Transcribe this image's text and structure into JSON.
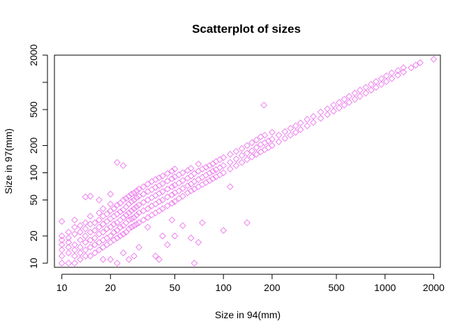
{
  "chart_data": {
    "type": "scatter",
    "title": "Scatterplot of sizes",
    "xlabel": "Size in 94(mm)",
    "ylabel": "Size in 97(mm)",
    "x_scale": "log",
    "y_scale": "log",
    "xlim": [
      9,
      2200
    ],
    "ylim": [
      9,
      2000
    ],
    "x_ticks": [
      10,
      20,
      50,
      100,
      200,
      500,
      1000,
      2000
    ],
    "y_ticks": [
      10,
      20,
      50,
      100,
      200,
      500,
      2000
    ],
    "y_tick_marks": [
      10,
      20,
      50,
      100,
      200,
      500,
      1000,
      2000
    ],
    "grid": false,
    "legend": "none",
    "marker": "diamond",
    "color": "#EE82EE",
    "points": [
      [
        10,
        10
      ],
      [
        10,
        12
      ],
      [
        10,
        14
      ],
      [
        10,
        16
      ],
      [
        10,
        18
      ],
      [
        10,
        20
      ],
      [
        10,
        29
      ],
      [
        11,
        10
      ],
      [
        11,
        13
      ],
      [
        11,
        15
      ],
      [
        11,
        17
      ],
      [
        11,
        19
      ],
      [
        11,
        22
      ],
      [
        12,
        10
      ],
      [
        12,
        12
      ],
      [
        12,
        14
      ],
      [
        12,
        16
      ],
      [
        12,
        21
      ],
      [
        12,
        25
      ],
      [
        12,
        30
      ],
      [
        13,
        11
      ],
      [
        13,
        13
      ],
      [
        13,
        15
      ],
      [
        13,
        18
      ],
      [
        13,
        22
      ],
      [
        13,
        26
      ],
      [
        14,
        12
      ],
      [
        14,
        14
      ],
      [
        14,
        17
      ],
      [
        14,
        20
      ],
      [
        14,
        24
      ],
      [
        14,
        28
      ],
      [
        14,
        54
      ],
      [
        15,
        12
      ],
      [
        15,
        15
      ],
      [
        15,
        18
      ],
      [
        15,
        22
      ],
      [
        15,
        27
      ],
      [
        15,
        33
      ],
      [
        15,
        55
      ],
      [
        16,
        13
      ],
      [
        16,
        16
      ],
      [
        16,
        19
      ],
      [
        16,
        23
      ],
      [
        16,
        28
      ],
      [
        17,
        14
      ],
      [
        17,
        17
      ],
      [
        17,
        21
      ],
      [
        17,
        25
      ],
      [
        17,
        30
      ],
      [
        17,
        36
      ],
      [
        17,
        50
      ],
      [
        18,
        11
      ],
      [
        18,
        15
      ],
      [
        18,
        18
      ],
      [
        18,
        22
      ],
      [
        18,
        27
      ],
      [
        18,
        33
      ],
      [
        18,
        40
      ],
      [
        19,
        16
      ],
      [
        19,
        19
      ],
      [
        19,
        24
      ],
      [
        19,
        29
      ],
      [
        19,
        35
      ],
      [
        20,
        11
      ],
      [
        20,
        17
      ],
      [
        20,
        20
      ],
      [
        20,
        25
      ],
      [
        20,
        31
      ],
      [
        20,
        38
      ],
      [
        20,
        45
      ],
      [
        20,
        58
      ],
      [
        21,
        18
      ],
      [
        21,
        22
      ],
      [
        21,
        27
      ],
      [
        21,
        33
      ],
      [
        21,
        40
      ],
      [
        22,
        10
      ],
      [
        22,
        19
      ],
      [
        22,
        23
      ],
      [
        22,
        28
      ],
      [
        22,
        35
      ],
      [
        22,
        44
      ],
      [
        22,
        130
      ],
      [
        23,
        20
      ],
      [
        23,
        25
      ],
      [
        23,
        30
      ],
      [
        23,
        37
      ],
      [
        23,
        46
      ],
      [
        24,
        13
      ],
      [
        24,
        21
      ],
      [
        24,
        26
      ],
      [
        24,
        32
      ],
      [
        24,
        39
      ],
      [
        24,
        50
      ],
      [
        24,
        120
      ],
      [
        25,
        22
      ],
      [
        25,
        28
      ],
      [
        25,
        34
      ],
      [
        25,
        42
      ],
      [
        25,
        52
      ],
      [
        26,
        11
      ],
      [
        26,
        24
      ],
      [
        26,
        30
      ],
      [
        26,
        36
      ],
      [
        26,
        45
      ],
      [
        26,
        55
      ],
      [
        27,
        25
      ],
      [
        27,
        31
      ],
      [
        27,
        38
      ],
      [
        27,
        48
      ],
      [
        27,
        58
      ],
      [
        28,
        12
      ],
      [
        28,
        26
      ],
      [
        28,
        32
      ],
      [
        28,
        40
      ],
      [
        28,
        50
      ],
      [
        28,
        60
      ],
      [
        29,
        27
      ],
      [
        29,
        34
      ],
      [
        29,
        42
      ],
      [
        29,
        53
      ],
      [
        29,
        63
      ],
      [
        30,
        15
      ],
      [
        30,
        28
      ],
      [
        30,
        36
      ],
      [
        30,
        44
      ],
      [
        30,
        55
      ],
      [
        30,
        66
      ],
      [
        32,
        30
      ],
      [
        32,
        38
      ],
      [
        32,
        47
      ],
      [
        32,
        58
      ],
      [
        32,
        70
      ],
      [
        34,
        25
      ],
      [
        34,
        32
      ],
      [
        34,
        40
      ],
      [
        34,
        50
      ],
      [
        34,
        62
      ],
      [
        34,
        75
      ],
      [
        36,
        34
      ],
      [
        36,
        43
      ],
      [
        36,
        53
      ],
      [
        36,
        65
      ],
      [
        36,
        80
      ],
      [
        38,
        12
      ],
      [
        38,
        36
      ],
      [
        38,
        45
      ],
      [
        38,
        56
      ],
      [
        38,
        69
      ],
      [
        38,
        84
      ],
      [
        40,
        11
      ],
      [
        40,
        38
      ],
      [
        40,
        48
      ],
      [
        40,
        59
      ],
      [
        40,
        72
      ],
      [
        40,
        88
      ],
      [
        42,
        20
      ],
      [
        42,
        40
      ],
      [
        42,
        50
      ],
      [
        42,
        62
      ],
      [
        42,
        76
      ],
      [
        42,
        92
      ],
      [
        45,
        16
      ],
      [
        45,
        43
      ],
      [
        45,
        54
      ],
      [
        45,
        66
      ],
      [
        45,
        81
      ],
      [
        45,
        98
      ],
      [
        48,
        30
      ],
      [
        48,
        46
      ],
      [
        48,
        57
      ],
      [
        48,
        70
      ],
      [
        48,
        86
      ],
      [
        48,
        104
      ],
      [
        50,
        20
      ],
      [
        50,
        48
      ],
      [
        50,
        60
      ],
      [
        50,
        73
      ],
      [
        50,
        90
      ],
      [
        50,
        110
      ],
      [
        53,
        52
      ],
      [
        53,
        63
      ],
      [
        53,
        77
      ],
      [
        53,
        95
      ],
      [
        56,
        26
      ],
      [
        56,
        55
      ],
      [
        56,
        67
      ],
      [
        56,
        82
      ],
      [
        56,
        100
      ],
      [
        60,
        60
      ],
      [
        60,
        72
      ],
      [
        60,
        87
      ],
      [
        60,
        106
      ],
      [
        63,
        19
      ],
      [
        63,
        63
      ],
      [
        63,
        75
      ],
      [
        63,
        92
      ],
      [
        63,
        112
      ],
      [
        66,
        10
      ],
      [
        66,
        66
      ],
      [
        66,
        80
      ],
      [
        66,
        98
      ],
      [
        70,
        17
      ],
      [
        70,
        70
      ],
      [
        70,
        84
      ],
      [
        70,
        104
      ],
      [
        70,
        125
      ],
      [
        74,
        28
      ],
      [
        74,
        74
      ],
      [
        74,
        89
      ],
      [
        74,
        110
      ],
      [
        78,
        78
      ],
      [
        78,
        94
      ],
      [
        78,
        115
      ],
      [
        82,
        82
      ],
      [
        82,
        99
      ],
      [
        82,
        120
      ],
      [
        86,
        86
      ],
      [
        86,
        104
      ],
      [
        86,
        126
      ],
      [
        90,
        90
      ],
      [
        90,
        108
      ],
      [
        90,
        133
      ],
      [
        95,
        95
      ],
      [
        95,
        114
      ],
      [
        95,
        140
      ],
      [
        100,
        100
      ],
      [
        100,
        120
      ],
      [
        100,
        147
      ],
      [
        100,
        23
      ],
      [
        110,
        70
      ],
      [
        110,
        110
      ],
      [
        110,
        130
      ],
      [
        110,
        160
      ],
      [
        120,
        120
      ],
      [
        120,
        142
      ],
      [
        120,
        172
      ],
      [
        130,
        130
      ],
      [
        130,
        155
      ],
      [
        130,
        185
      ],
      [
        140,
        28
      ],
      [
        140,
        140
      ],
      [
        140,
        165
      ],
      [
        140,
        200
      ],
      [
        150,
        150
      ],
      [
        150,
        175
      ],
      [
        150,
        215
      ],
      [
        160,
        160
      ],
      [
        160,
        190
      ],
      [
        160,
        230
      ],
      [
        170,
        170
      ],
      [
        170,
        205
      ],
      [
        170,
        250
      ],
      [
        178,
        560
      ],
      [
        180,
        180
      ],
      [
        180,
        215
      ],
      [
        180,
        260
      ],
      [
        190,
        190
      ],
      [
        190,
        225
      ],
      [
        200,
        200
      ],
      [
        200,
        235
      ],
      [
        200,
        280
      ],
      [
        220,
        220
      ],
      [
        220,
        260
      ],
      [
        240,
        240
      ],
      [
        240,
        285
      ],
      [
        260,
        260
      ],
      [
        260,
        310
      ],
      [
        280,
        280
      ],
      [
        280,
        330
      ],
      [
        300,
        300
      ],
      [
        300,
        355
      ],
      [
        330,
        330
      ],
      [
        330,
        390
      ],
      [
        360,
        360
      ],
      [
        360,
        420
      ],
      [
        400,
        400
      ],
      [
        400,
        470
      ],
      [
        440,
        440
      ],
      [
        440,
        510
      ],
      [
        480,
        480
      ],
      [
        480,
        560
      ],
      [
        520,
        520
      ],
      [
        520,
        600
      ],
      [
        560,
        560
      ],
      [
        560,
        650
      ],
      [
        600,
        600
      ],
      [
        600,
        700
      ],
      [
        650,
        650
      ],
      [
        650,
        760
      ],
      [
        700,
        700
      ],
      [
        700,
        820
      ],
      [
        760,
        760
      ],
      [
        760,
        880
      ],
      [
        820,
        820
      ],
      [
        820,
        950
      ],
      [
        880,
        880
      ],
      [
        880,
        1020
      ],
      [
        950,
        950
      ],
      [
        950,
        1100
      ],
      [
        1020,
        1020
      ],
      [
        1020,
        1180
      ],
      [
        1100,
        1100
      ],
      [
        1100,
        1270
      ],
      [
        1200,
        1200
      ],
      [
        1200,
        1350
      ],
      [
        1300,
        1300
      ],
      [
        1300,
        1450
      ],
      [
        1450,
        1450
      ],
      [
        1550,
        1550
      ],
      [
        1650,
        1650
      ],
      [
        2000,
        1800
      ]
    ]
  }
}
